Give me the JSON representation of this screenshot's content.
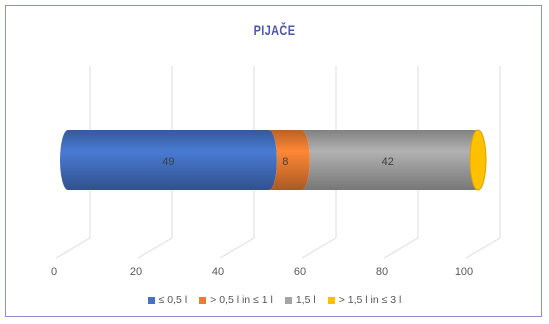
{
  "chart_data": {
    "type": "bar",
    "orientation": "horizontal",
    "stacked": true,
    "style": "3d-cylinder",
    "title": "PIJAČE",
    "categories": [
      ""
    ],
    "series": [
      {
        "name": "≤ 0,5 l",
        "values": [
          49
        ],
        "color": "#4472c4"
      },
      {
        "name": "> 0,5 l in ≤ 1 l",
        "values": [
          8
        ],
        "color": "#ed7d31"
      },
      {
        "name": "1,5 l",
        "values": [
          42
        ],
        "color": "#a5a5a5"
      },
      {
        "name": "> 1,5 l in ≤ 3 l",
        "values": [
          1
        ],
        "color": "#ffc000"
      }
    ],
    "xlim": [
      0,
      100
    ],
    "xticks": [
      "0",
      "20",
      "40",
      "60",
      "80",
      "100"
    ],
    "grid": true,
    "legend": "bottom"
  }
}
